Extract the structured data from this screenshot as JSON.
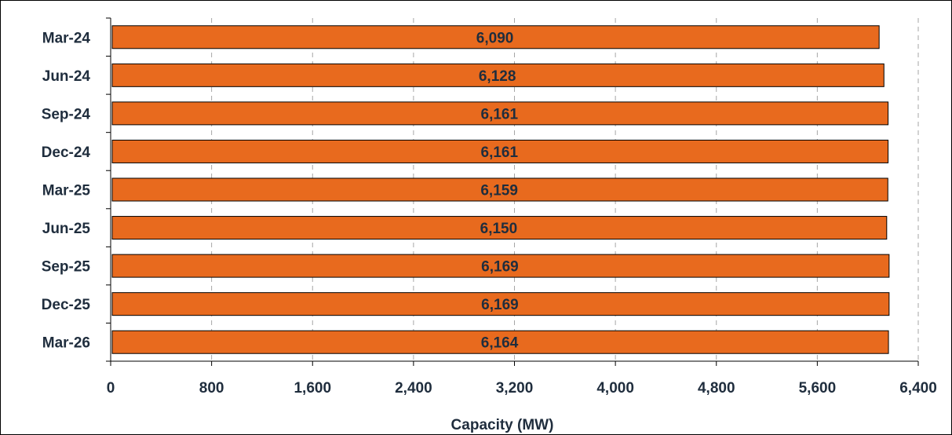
{
  "chart_data": {
    "type": "bar",
    "orientation": "horizontal",
    "categories": [
      "Mar-24",
      "Jun-24",
      "Sep-24",
      "Dec-24",
      "Mar-25",
      "Jun-25",
      "Sep-25",
      "Dec-25",
      "Mar-26"
    ],
    "values": [
      6090,
      6128,
      6161,
      6161,
      6159,
      6150,
      6169,
      6169,
      6164
    ],
    "data_labels": [
      "6,090",
      "6,128",
      "6,161",
      "6,161",
      "6,159",
      "6,150",
      "6,169",
      "6,169",
      "6,164"
    ],
    "xlabel": "Capacity (MW)",
    "xlim": [
      0,
      6400
    ],
    "xticks": [
      0,
      800,
      1600,
      2400,
      3200,
      4000,
      4800,
      5600,
      6400
    ],
    "xtick_labels": [
      "0",
      "800",
      "1,600",
      "2,400",
      "3,200",
      "4,000",
      "4,800",
      "5,600",
      "6,400"
    ],
    "grid": "vertical dashed",
    "bar_color": "#E86A1E",
    "bar_edge_color": "#000000",
    "gridline_color": "#A6A6A6",
    "text_color": "#1F2D3D"
  }
}
